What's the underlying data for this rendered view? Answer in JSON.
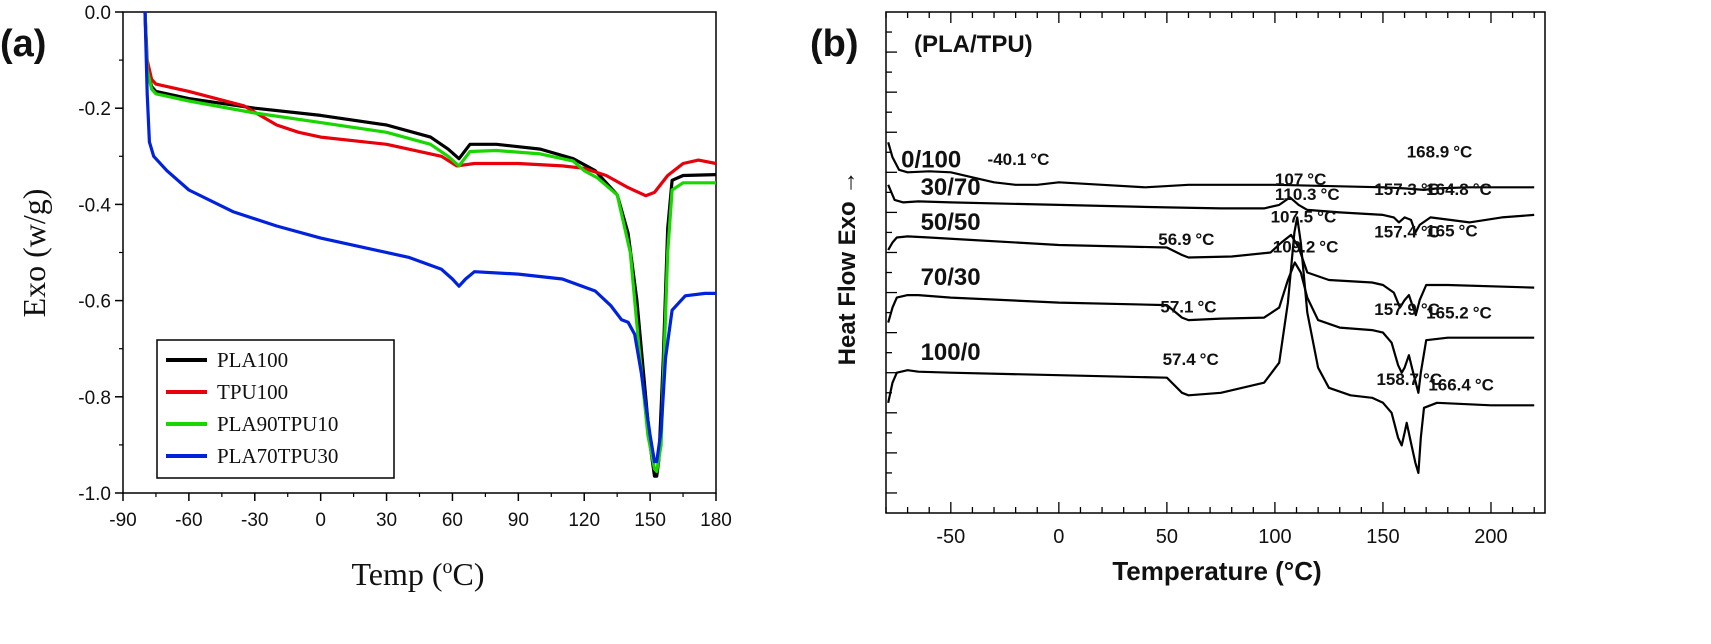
{
  "chart_data": [
    {
      "panel_label": "(a)",
      "type": "line",
      "xlabel": "Temp (oC)",
      "xlabel_parts": {
        "before": "Temp (",
        "superscript": "o",
        "after": "C)"
      },
      "ylabel": "Exo (w/g)",
      "xlim": [
        -90,
        180
      ],
      "ylim": [
        -1.0,
        0.0
      ],
      "xticks": [
        "-90",
        "-60",
        "-30",
        "0",
        "30",
        "60",
        "90",
        "120",
        "150",
        "180"
      ],
      "yticks": [
        "0.0",
        "-0.2",
        "-0.4",
        "-0.6",
        "-0.8",
        "-1.0"
      ],
      "legend_position": "bottom-left",
      "series": [
        {
          "name": "PLA100",
          "color": "#000000",
          "x": [
            -80,
            -79,
            -77,
            -75,
            -60,
            -30,
            0,
            30,
            50,
            58,
            63,
            68,
            80,
            100,
            115,
            125,
            135,
            140,
            144,
            147,
            150,
            152,
            153,
            154,
            156,
            158,
            160,
            165,
            180
          ],
          "y": [
            0.0,
            -0.12,
            -0.155,
            -0.165,
            -0.18,
            -0.2,
            -0.215,
            -0.235,
            -0.26,
            -0.285,
            -0.305,
            -0.275,
            -0.275,
            -0.285,
            -0.305,
            -0.33,
            -0.38,
            -0.46,
            -0.6,
            -0.75,
            -0.9,
            -0.965,
            -0.965,
            -0.93,
            -0.72,
            -0.45,
            -0.35,
            -0.34,
            -0.338
          ]
        },
        {
          "name": "TPU100",
          "color": "#e8000b",
          "x": [
            -80,
            -79,
            -77,
            -75,
            -60,
            -35,
            -20,
            -10,
            0,
            30,
            55,
            62,
            70,
            90,
            110,
            120,
            130,
            140,
            148,
            152,
            158,
            165,
            172,
            180
          ],
          "y": [
            0.0,
            -0.1,
            -0.14,
            -0.15,
            -0.165,
            -0.195,
            -0.235,
            -0.25,
            -0.26,
            -0.275,
            -0.3,
            -0.32,
            -0.315,
            -0.315,
            -0.32,
            -0.325,
            -0.34,
            -0.365,
            -0.382,
            -0.375,
            -0.34,
            -0.315,
            -0.308,
            -0.315
          ]
        },
        {
          "name": "PLA90TPU10",
          "color": "#19d600",
          "x": [
            -80,
            -79,
            -77,
            -75,
            -60,
            -30,
            0,
            30,
            50,
            58,
            63,
            68,
            80,
            100,
            115,
            120,
            126,
            135,
            141,
            145,
            149,
            152,
            153,
            155,
            158,
            160,
            165,
            180
          ],
          "y": [
            0.0,
            -0.12,
            -0.16,
            -0.17,
            -0.185,
            -0.21,
            -0.23,
            -0.25,
            -0.275,
            -0.3,
            -0.32,
            -0.29,
            -0.288,
            -0.295,
            -0.31,
            -0.33,
            -0.345,
            -0.38,
            -0.5,
            -0.7,
            -0.88,
            -0.95,
            -0.955,
            -0.9,
            -0.5,
            -0.37,
            -0.355,
            -0.355
          ]
        },
        {
          "name": "PLA70TPU30",
          "color": "#0022dd",
          "x": [
            -80,
            -79,
            -78,
            -76,
            -70,
            -60,
            -40,
            -20,
            0,
            20,
            40,
            55,
            60,
            63,
            66,
            70,
            90,
            110,
            125,
            132,
            137,
            140,
            143,
            146,
            150,
            152,
            153,
            155,
            157,
            160,
            166,
            175,
            180
          ],
          "y": [
            0.0,
            -0.17,
            -0.27,
            -0.3,
            -0.33,
            -0.37,
            -0.415,
            -0.445,
            -0.47,
            -0.49,
            -0.51,
            -0.535,
            -0.555,
            -0.57,
            -0.555,
            -0.54,
            -0.545,
            -0.555,
            -0.58,
            -0.61,
            -0.64,
            -0.645,
            -0.67,
            -0.75,
            -0.88,
            -0.935,
            -0.935,
            -0.87,
            -0.72,
            -0.62,
            -0.59,
            -0.585,
            -0.585
          ]
        }
      ]
    },
    {
      "panel_label": "(b)",
      "type": "line",
      "xlabel": "Temperature (°C)",
      "ylabel": "Heat Flow Exo →",
      "xlim": [
        -80,
        225
      ],
      "xticks": [
        "-50",
        "0",
        "50",
        "100",
        "150",
        "200"
      ],
      "yticks": [],
      "blend_header": "(PLA/TPU)",
      "series": [
        {
          "name": "100/0",
          "color": "#000000",
          "x": [
            -79,
            -77,
            -75,
            -70,
            -65,
            -50,
            0,
            50,
            57,
            60,
            75,
            95,
            102,
            106,
            109,
            110.3,
            112,
            115,
            120,
            125,
            135,
            145,
            150,
            154,
            157,
            158.7,
            160,
            161,
            163,
            165,
            166.4,
            167.5,
            169,
            175,
            200,
            220
          ],
          "y": [
            0.78,
            0.74,
            0.72,
            0.715,
            0.718,
            0.72,
            0.725,
            0.73,
            0.76,
            0.765,
            0.76,
            0.74,
            0.7,
            0.58,
            0.44,
            0.41,
            0.46,
            0.6,
            0.71,
            0.75,
            0.765,
            0.77,
            0.78,
            0.8,
            0.85,
            0.865,
            0.84,
            0.82,
            0.86,
            0.9,
            0.92,
            0.85,
            0.79,
            0.78,
            0.785,
            0.785
          ]
        },
        {
          "name": "70/30",
          "color": "#000000",
          "x": [
            -79,
            -77,
            -75,
            -70,
            -65,
            -50,
            0,
            50,
            57,
            60,
            75,
            95,
            102,
            106,
            109.2,
            112,
            115,
            120,
            130,
            145,
            150,
            154,
            157,
            158.7,
            160,
            162,
            164,
            166.4,
            167.5,
            170,
            180,
            220
          ],
          "y": [
            0.62,
            0.59,
            0.57,
            0.565,
            0.565,
            0.57,
            0.58,
            0.585,
            0.61,
            0.615,
            0.612,
            0.61,
            0.59,
            0.535,
            0.5,
            0.52,
            0.57,
            0.615,
            0.63,
            0.635,
            0.64,
            0.66,
            0.705,
            0.72,
            0.71,
            0.685,
            0.72,
            0.76,
            0.72,
            0.655,
            0.65,
            0.65
          ]
        },
        {
          "name": "50/50",
          "color": "#000000",
          "x": [
            -79,
            -77,
            -75,
            -70,
            -60,
            -40,
            0,
            50,
            57,
            60,
            80,
            98,
            103,
            107.5,
            111,
            115,
            125,
            145,
            150,
            155,
            157.9,
            160,
            162,
            165.2,
            167,
            170,
            180,
            220
          ],
          "y": [
            0.475,
            0.46,
            0.45,
            0.448,
            0.45,
            0.455,
            0.465,
            0.47,
            0.485,
            0.49,
            0.488,
            0.48,
            0.46,
            0.445,
            0.47,
            0.52,
            0.535,
            0.54,
            0.545,
            0.56,
            0.59,
            0.575,
            0.565,
            0.605,
            0.575,
            0.545,
            0.545,
            0.55
          ]
        },
        {
          "name": "30/70",
          "color": "#000000",
          "x": [
            -79,
            -76,
            -72,
            -65,
            -50,
            0,
            50,
            75,
            95,
            102,
            107,
            111,
            115,
            130,
            150,
            155,
            157.4,
            160,
            163,
            165,
            167,
            172,
            190,
            205,
            220
          ],
          "y": [
            0.345,
            0.375,
            0.38,
            0.378,
            0.38,
            0.385,
            0.39,
            0.392,
            0.392,
            0.385,
            0.37,
            0.385,
            0.395,
            0.4,
            0.405,
            0.41,
            0.42,
            0.41,
            0.415,
            0.44,
            0.425,
            0.41,
            0.42,
            0.41,
            0.405
          ]
        },
        {
          "name": "0/100",
          "color": "#000000",
          "x": [
            -79,
            -77,
            -74,
            -70,
            -60,
            -50,
            -40.1,
            -30,
            -20,
            -10,
            0,
            20,
            40,
            60,
            100,
            150,
            160,
            168.9,
            175,
            190,
            220
          ],
          "y": [
            0.26,
            0.29,
            0.315,
            0.32,
            0.318,
            0.32,
            0.33,
            0.34,
            0.345,
            0.345,
            0.34,
            0.345,
            0.35,
            0.345,
            0.345,
            0.35,
            0.352,
            0.355,
            0.352,
            0.35,
            0.35
          ]
        }
      ],
      "series_labels": [
        {
          "text": "100/0",
          "at": [
            -64,
            0.695
          ]
        },
        {
          "text": "70/30",
          "at": [
            -64,
            0.545
          ]
        },
        {
          "text": "50/50",
          "at": [
            -64,
            0.435
          ]
        },
        {
          "text": "30/70",
          "at": [
            -64,
            0.365
          ]
        },
        {
          "text": "0/100",
          "at": [
            -73,
            0.31
          ]
        }
      ],
      "annotations": [
        {
          "text": "110.3",
          "unit": "°C",
          "at": [
            100,
            0.375
          ]
        },
        {
          "text": "57.4",
          "unit": "°C",
          "at": [
            48,
            0.705
          ]
        },
        {
          "text": "109.2",
          "unit": "°C",
          "at": [
            99,
            0.48
          ]
        },
        {
          "text": "158.7",
          "unit": "°C",
          "at": [
            147,
            0.745
          ]
        },
        {
          "text": "166.4",
          "unit": "°C",
          "at": [
            171,
            0.755
          ]
        },
        {
          "text": "57.1",
          "unit": "°C",
          "at": [
            47,
            0.6
          ]
        },
        {
          "text": "107.5",
          "unit": "°C",
          "at": [
            98,
            0.42
          ]
        },
        {
          "text": "56.9",
          "unit": "°C",
          "at": [
            46,
            0.465
          ]
        },
        {
          "text": "157.9",
          "unit": "°C",
          "at": [
            146,
            0.605
          ]
        },
        {
          "text": "165.2",
          "unit": "°C",
          "at": [
            170,
            0.612
          ]
        },
        {
          "text": "107",
          "unit": "°C",
          "at": [
            100,
            0.345
          ]
        },
        {
          "text": "157.4",
          "unit": "°C",
          "at": [
            146,
            0.45
          ]
        },
        {
          "text": "165",
          "unit": "°C",
          "at": [
            170,
            0.448
          ]
        },
        {
          "text": "157.3",
          "unit": "°C",
          "at": [
            146,
            0.365
          ]
        },
        {
          "text": "164.8",
          "unit": "°C",
          "at": [
            170,
            0.365
          ]
        },
        {
          "text": "-40.1",
          "unit": "°C",
          "at": [
            -33,
            0.305
          ]
        },
        {
          "text": "168.9",
          "unit": "°C",
          "at": [
            161,
            0.29
          ]
        }
      ]
    }
  ]
}
